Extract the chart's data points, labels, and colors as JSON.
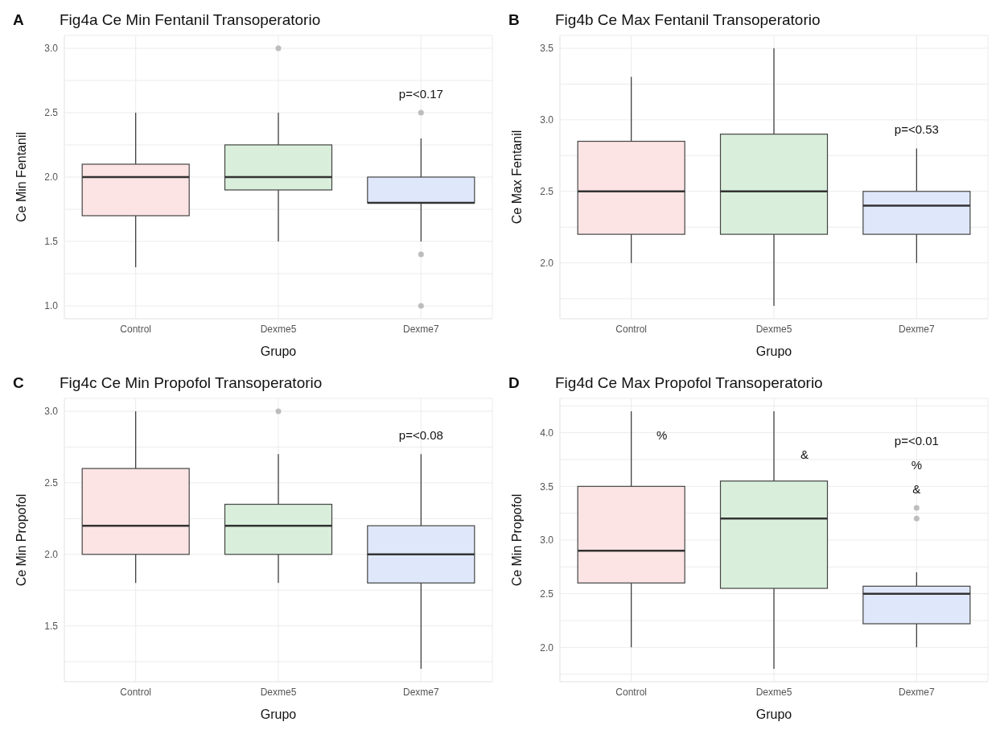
{
  "chart_data": [
    {
      "type": "box",
      "title": "Fig4a Ce Min Fentanil Transoperatorio",
      "xlabel": "Grupo",
      "ylabel": "Ce Min Fentanil",
      "categories": [
        "Control",
        "Dexme5",
        "Dexme7"
      ],
      "colors": [
        "#fde4e4",
        "#d9efdb",
        "#dfe8fb"
      ],
      "grid": true,
      "ylim": [
        0.9,
        3.1
      ],
      "yticks": [
        {
          "value": 1.0,
          "label": "1.0"
        },
        {
          "value": 1.25,
          "label": null
        },
        {
          "value": 1.5,
          "label": "1.5"
        },
        {
          "value": 1.75,
          "label": null
        },
        {
          "value": 2.0,
          "label": "2.0"
        },
        {
          "value": 2.25,
          "label": null
        },
        {
          "value": 2.5,
          "label": "2.5"
        },
        {
          "value": 2.75,
          "label": null
        },
        {
          "value": 3.0,
          "label": "3.0"
        }
      ],
      "boxes": [
        {
          "low": 1.3,
          "q1": 1.7,
          "median": 2.0,
          "q3": 2.1,
          "high": 2.5
        },
        {
          "low": 1.5,
          "q1": 1.9,
          "median": 2.0,
          "q3": 2.25,
          "high": 2.5,
          "outliers": [
            3.0
          ]
        },
        {
          "low": 1.5,
          "q1": 1.8,
          "median": 1.8,
          "q3": 2.0,
          "high": 2.3,
          "outliers": [
            2.5,
            1.4,
            1.0
          ]
        }
      ],
      "annotations": [
        "A",
        "p=<0.17"
      ]
    },
    {
      "type": "box",
      "title": "Fig4b Ce Max Fentanil Transoperatorio",
      "xlabel": "Grupo",
      "ylabel": "Ce Max Fentanil",
      "categories": [
        "Control",
        "Dexme5",
        "Dexme7"
      ],
      "colors": [
        "#fde4e4",
        "#d9efdb",
        "#dfe8fb"
      ],
      "grid": true,
      "ylim": [
        1.61,
        3.59
      ],
      "yticks": [
        {
          "value": 1.75,
          "label": null
        },
        {
          "value": 2.0,
          "label": "2.0"
        },
        {
          "value": 2.25,
          "label": null
        },
        {
          "value": 2.5,
          "label": "2.5"
        },
        {
          "value": 2.75,
          "label": null
        },
        {
          "value": 3.0,
          "label": "3.0"
        },
        {
          "value": 3.25,
          "label": null
        },
        {
          "value": 3.5,
          "label": "3.5"
        }
      ],
      "boxes": [
        {
          "low": 2.0,
          "q1": 2.2,
          "median": 2.5,
          "q3": 2.85,
          "high": 3.3
        },
        {
          "low": 1.7,
          "q1": 2.2,
          "median": 2.5,
          "q3": 2.9,
          "high": 3.5
        },
        {
          "low": 2.0,
          "q1": 2.2,
          "median": 2.4,
          "q3": 2.5,
          "high": 2.8
        }
      ],
      "annotations": [
        "B",
        "p=<0.53"
      ]
    },
    {
      "type": "box",
      "title": "Fig4c Ce Min Propofol Transoperatorio",
      "xlabel": "Grupo",
      "ylabel": "Ce Min Propofol",
      "categories": [
        "Control",
        "Dexme5",
        "Dexme7"
      ],
      "colors": [
        "#fde4e4",
        "#d9efdb",
        "#dfe8fb"
      ],
      "grid": true,
      "ylim": [
        1.11,
        3.09
      ],
      "yticks": [
        {
          "value": 1.25,
          "label": null
        },
        {
          "value": 1.5,
          "label": "1.5"
        },
        {
          "value": 1.75,
          "label": null
        },
        {
          "value": 2.0,
          "label": "2.0"
        },
        {
          "value": 2.25,
          "label": null
        },
        {
          "value": 2.5,
          "label": "2.5"
        },
        {
          "value": 2.75,
          "label": null
        },
        {
          "value": 3.0,
          "label": "3.0"
        }
      ],
      "boxes": [
        {
          "low": 1.8,
          "q1": 2.0,
          "median": 2.2,
          "q3": 2.6,
          "high": 3.0
        },
        {
          "low": 1.8,
          "q1": 2.0,
          "median": 2.2,
          "q3": 2.35,
          "high": 2.7,
          "outliers": [
            3.0
          ]
        },
        {
          "low": 1.2,
          "q1": 1.8,
          "median": 2.0,
          "q3": 2.2,
          "high": 2.7
        }
      ],
      "annotations": [
        "C",
        "p=<0.08"
      ]
    },
    {
      "type": "box",
      "title": "Fig4d Ce Max Propofol Transoperatorio",
      "xlabel": "Grupo",
      "ylabel": "Ce Min Propofol",
      "categories": [
        "Control",
        "Dexme5",
        "Dexme7"
      ],
      "colors": [
        "#fde4e4",
        "#d9efdb",
        "#dfe8fb"
      ],
      "grid": true,
      "ylim": [
        1.68,
        4.32
      ],
      "yticks": [
        {
          "value": 1.75,
          "label": null
        },
        {
          "value": 2.0,
          "label": "2.0"
        },
        {
          "value": 2.25,
          "label": null
        },
        {
          "value": 2.5,
          "label": "2.5"
        },
        {
          "value": 2.75,
          "label": null
        },
        {
          "value": 3.0,
          "label": "3.0"
        },
        {
          "value": 3.25,
          "label": null
        },
        {
          "value": 3.5,
          "label": "3.5"
        },
        {
          "value": 3.75,
          "label": null
        },
        {
          "value": 4.0,
          "label": "4.0"
        },
        {
          "value": 4.25,
          "label": null
        }
      ],
      "boxes": [
        {
          "low": 2.0,
          "q1": 2.6,
          "median": 2.9,
          "q3": 3.5,
          "high": 4.2
        },
        {
          "low": 1.8,
          "q1": 2.55,
          "median": 3.2,
          "q3": 3.55,
          "high": 4.2
        },
        {
          "low": 2.0,
          "q1": 2.22,
          "median": 2.5,
          "q3": 2.57,
          "high": 2.7,
          "outliers": [
            3.3,
            3.2
          ]
        }
      ],
      "annotations": [
        "D",
        "p=<0.01",
        {
          "text": "%",
          "x": "Control",
          "y": 3.98
        },
        {
          "text": "&",
          "x": "Dexme5",
          "y": 3.8
        },
        "%",
        "&"
      ]
    }
  ]
}
